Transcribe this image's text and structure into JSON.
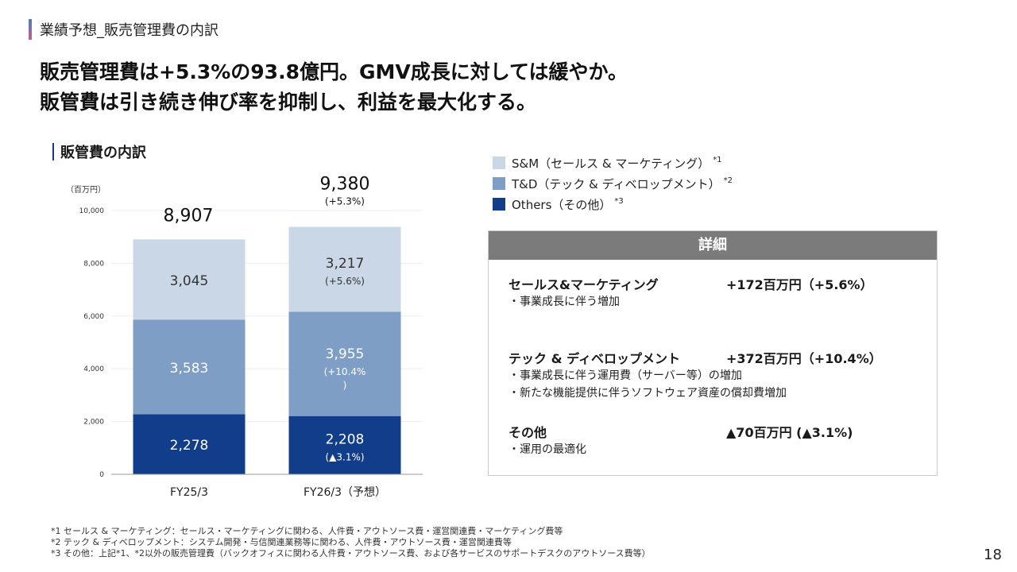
{
  "section": {
    "title": "業績予想_販売管理費の内訳"
  },
  "headline": {
    "line1": "販売管理費は+5.3%の93.8億円。GMV成長に対しては緩やか。",
    "line2": "販管費は引き続き伸び率を抑制し、利益を最大化する。"
  },
  "chart_title": "販管費の内訳",
  "colors": {
    "sm": "#cad7e6",
    "td": "#7f9ec6",
    "others": "#123d8a"
  },
  "chart_data": {
    "type": "bar",
    "stacked": true,
    "unit_label": "（百万円）",
    "categories": [
      "FY25/3",
      "FY26/3（予想）"
    ],
    "ylim": [
      0,
      10000
    ],
    "yticks": [
      0,
      2000,
      4000,
      6000,
      8000,
      10000
    ],
    "ytick_labels": [
      "0",
      "2,000",
      "4,000",
      "6,000",
      "8,000",
      "10,000"
    ],
    "series": [
      {
        "key": "others",
        "values": [
          2278,
          2208
        ],
        "labels": [
          "2,278",
          "2,208"
        ],
        "sub_labels": [
          "",
          "(▲3.1%)"
        ]
      },
      {
        "key": "td",
        "values": [
          3583,
          3955
        ],
        "labels": [
          "3,583",
          "3,955"
        ],
        "sub_labels": [
          "",
          "(+10.4%"
        ],
        "sub_labels2": [
          "",
          ")"
        ]
      },
      {
        "key": "sm",
        "values": [
          3045,
          3217
        ],
        "labels": [
          "3,045",
          "3,217"
        ],
        "sub_labels": [
          "",
          "(+5.6%)"
        ]
      }
    ],
    "totals": [
      8907,
      9380
    ],
    "total_labels": [
      "8,907",
      "9,380"
    ],
    "total_sub_labels": [
      "",
      "(+5.3%)"
    ]
  },
  "legend": [
    {
      "key": "sm",
      "label": "S&M（セールス & マーケティング）",
      "note": "*1"
    },
    {
      "key": "td",
      "label": "T&D（テック & ディベロップメント）",
      "note": "*2"
    },
    {
      "key": "others",
      "label": "Others（その他）",
      "note": "*3"
    }
  ],
  "detail": {
    "header": "詳細",
    "items": [
      {
        "label": "セールス&マーケティング",
        "value": "+172百万円（+5.6%）",
        "bullets": [
          "・事業成長に伴う増加"
        ]
      },
      {
        "label": "テック & ディベロップメント",
        "value": "+372百万円（+10.4%）",
        "bullets": [
          "・事業成長に伴う運用費（サーバー等）の増加",
          "・新たな機能提供に伴うソフトウェア資産の償却費増加"
        ]
      },
      {
        "label": "その他",
        "value": "▲70百万円 (▲3.1%)",
        "bullets": [
          "・運用の最適化"
        ]
      }
    ]
  },
  "footnotes": [
    "*1 セールス & マーケティング：セールス・マーケティングに関わる、人件費・アウトソース費・運営関連費・マーケティング費等",
    "*2 テック & ディベロップメント：システム開発・与信関連業務等に関わる、人件費・アウトソース費・運営関連費等",
    "*3 その他：上記*1、*2以外の販売管理費（バックオフィスに関わる人件費・アウトソース費、および各サービスのサポートデスクのアウトソース費等）"
  ],
  "page_number": "18"
}
